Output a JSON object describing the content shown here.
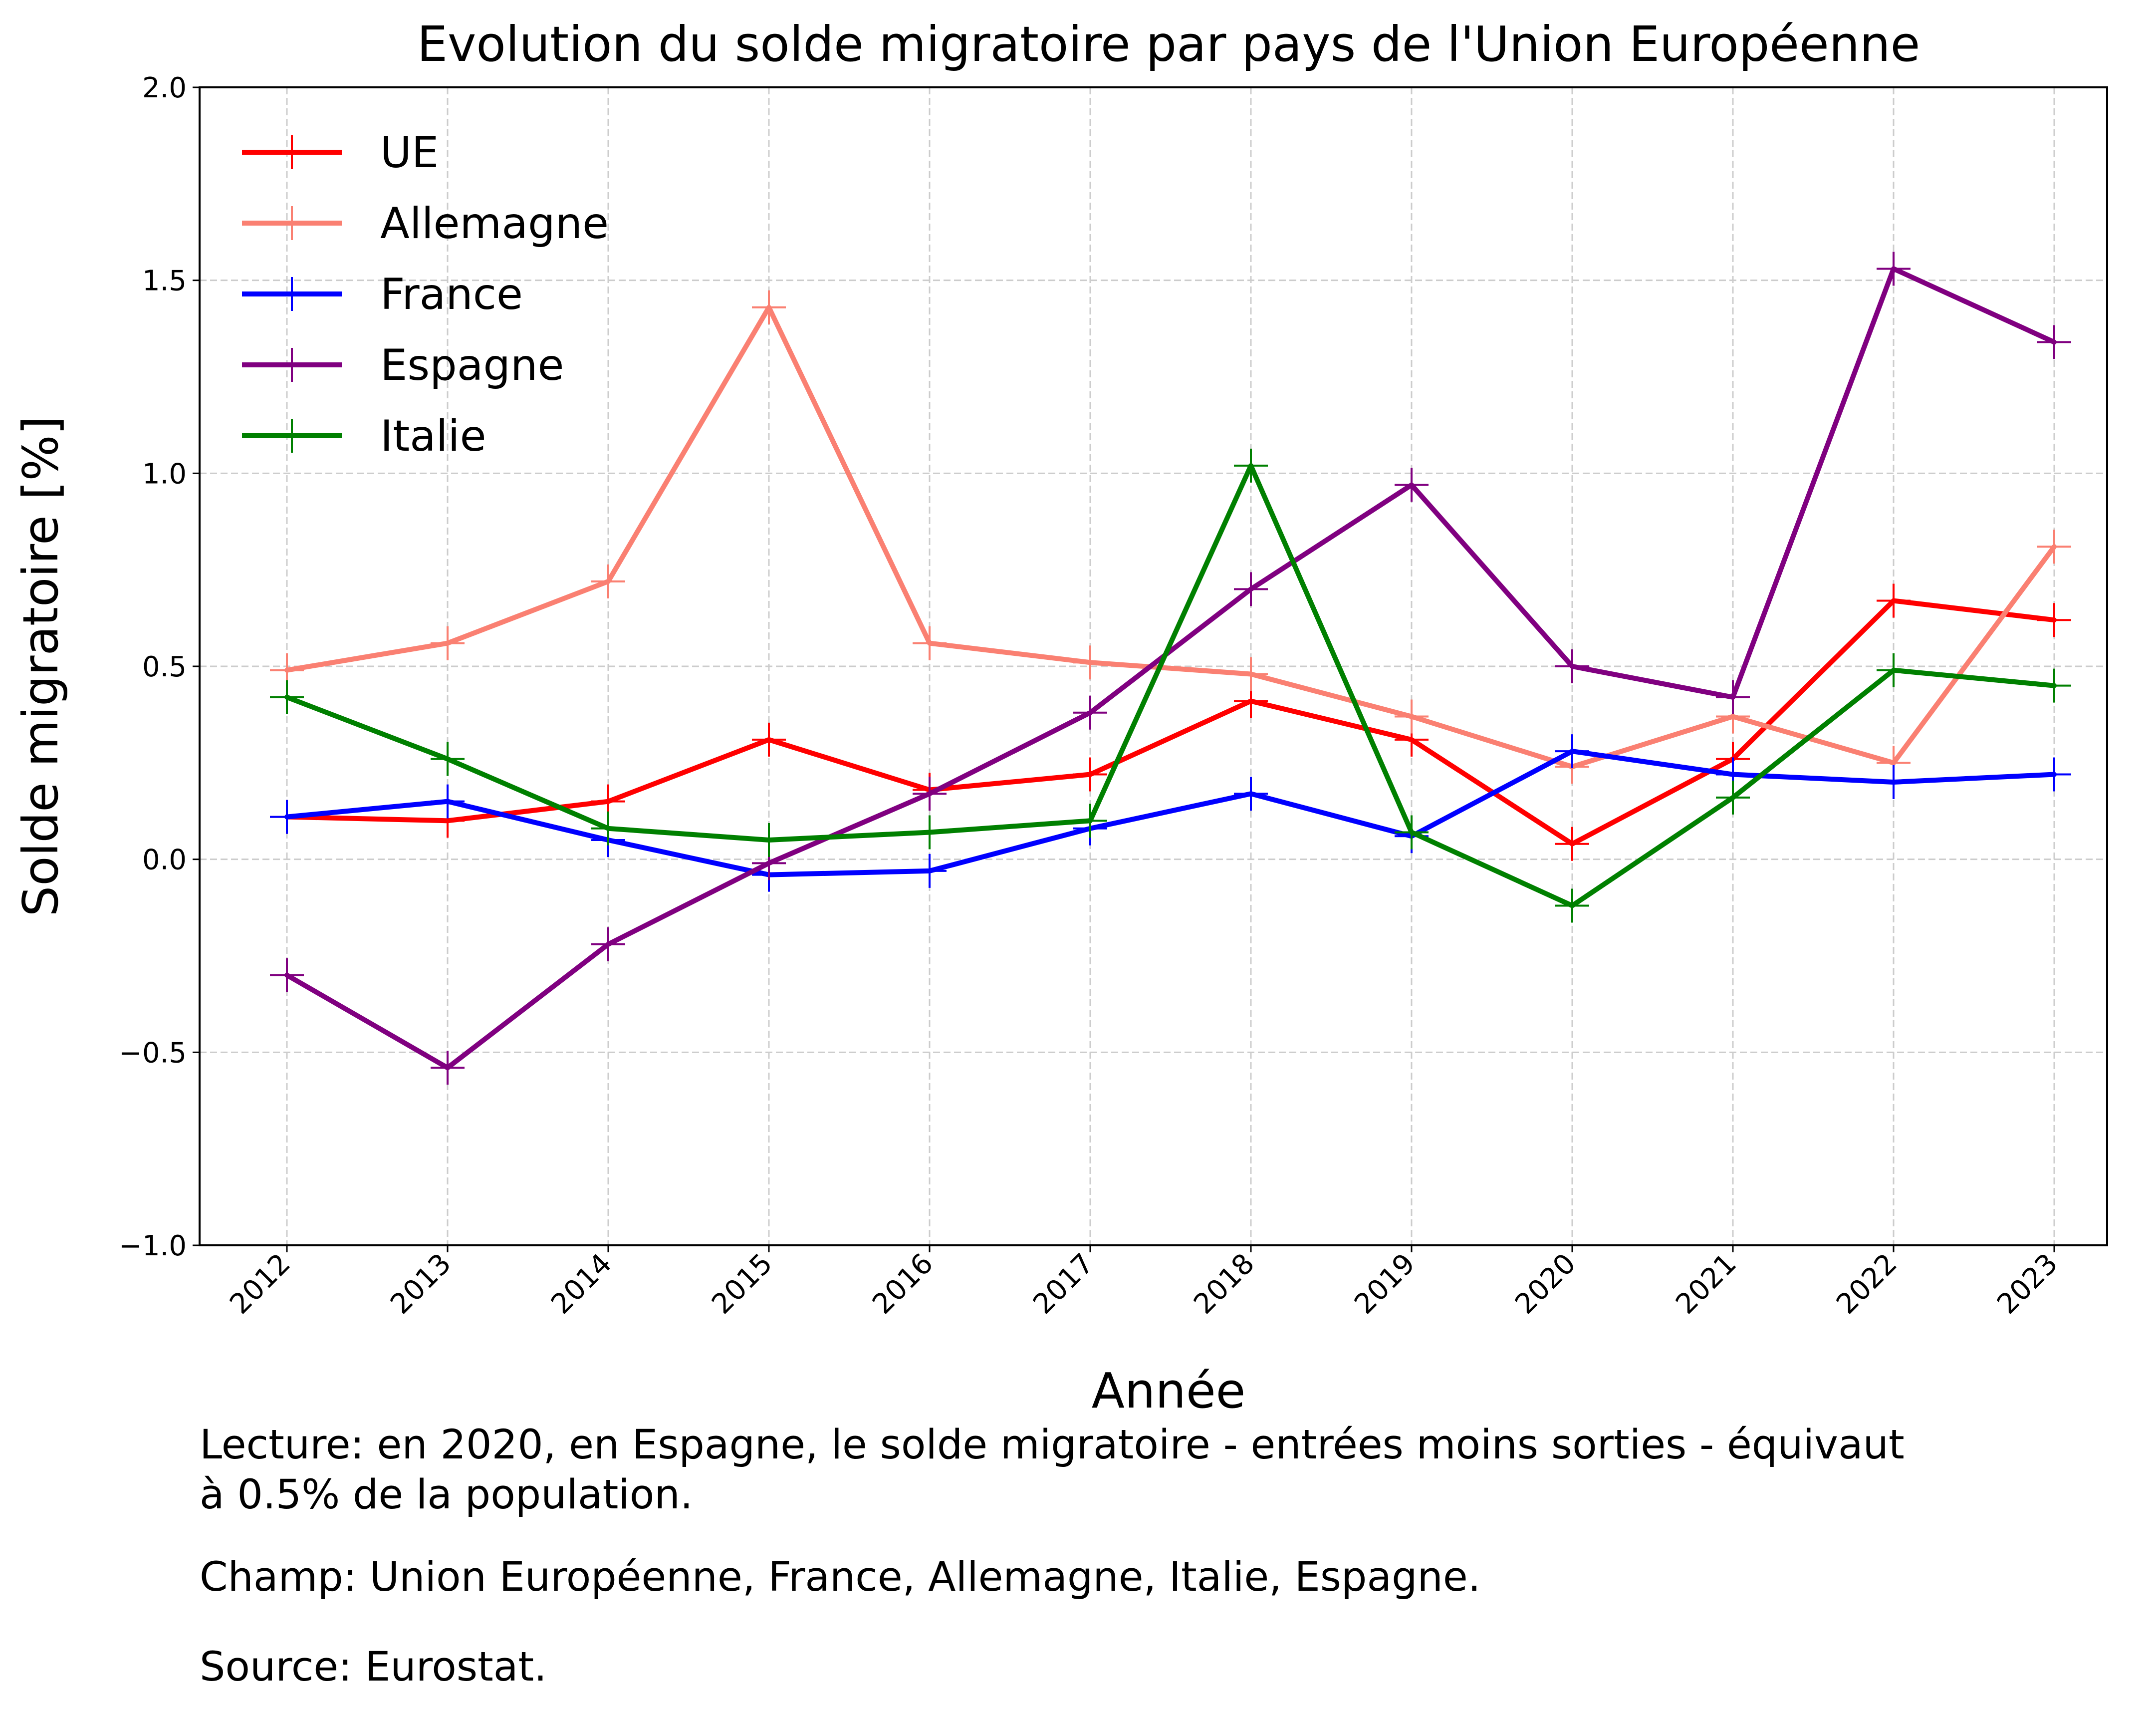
{
  "chart_data": {
    "type": "line",
    "title": "Evolution du solde migratoire par pays de l'Union Européenne",
    "xlabel": "Année",
    "ylabel": "Solde migratoire [%]",
    "ylim": [
      -1.0,
      2.0
    ],
    "yticks": [
      -1.0,
      -0.5,
      0.0,
      0.5,
      1.0,
      1.5,
      2.0
    ],
    "ytick_labels": [
      "−1.0",
      "−0.5",
      "0.0",
      "0.5",
      "1.0",
      "1.5",
      "2.0"
    ],
    "categories": [
      "2012",
      "2013",
      "2014",
      "2015",
      "2016",
      "2017",
      "2018",
      "2019",
      "2020",
      "2021",
      "2022",
      "2023"
    ],
    "grid": true,
    "legend_position": "top-left",
    "marker": "plus",
    "series": [
      {
        "name": "UE",
        "color": "#ff0000",
        "values": [
          0.11,
          0.1,
          0.15,
          0.31,
          0.18,
          0.22,
          0.41,
          0.31,
          0.04,
          0.26,
          0.67,
          0.62
        ]
      },
      {
        "name": "Allemagne",
        "color": "#fa8072",
        "values": [
          0.49,
          0.56,
          0.72,
          1.43,
          0.56,
          0.51,
          0.48,
          0.37,
          0.24,
          0.37,
          0.25,
          0.81
        ]
      },
      {
        "name": "France",
        "color": "#0000ff",
        "values": [
          0.11,
          0.15,
          0.05,
          -0.04,
          -0.03,
          0.08,
          0.17,
          0.06,
          0.28,
          0.22,
          0.2,
          0.22
        ]
      },
      {
        "name": "Espagne",
        "color": "#800080",
        "values": [
          -0.3,
          -0.54,
          -0.22,
          -0.01,
          0.17,
          0.38,
          0.7,
          0.97,
          0.5,
          0.42,
          1.53,
          1.34
        ]
      },
      {
        "name": "Italie",
        "color": "#008000",
        "values": [
          0.42,
          0.26,
          0.08,
          0.05,
          0.07,
          0.1,
          1.02,
          0.07,
          -0.12,
          0.16,
          0.49,
          0.45
        ]
      }
    ]
  },
  "notes": {
    "lecture": "Lecture: en 2020, en Espagne, le solde migratoire - entrées moins sorties - équivaut\nà 0.5% de la population.",
    "champ": "Champ: Union Européenne, France, Allemagne, Italie, Espagne.",
    "source": "Source: Eurostat."
  }
}
